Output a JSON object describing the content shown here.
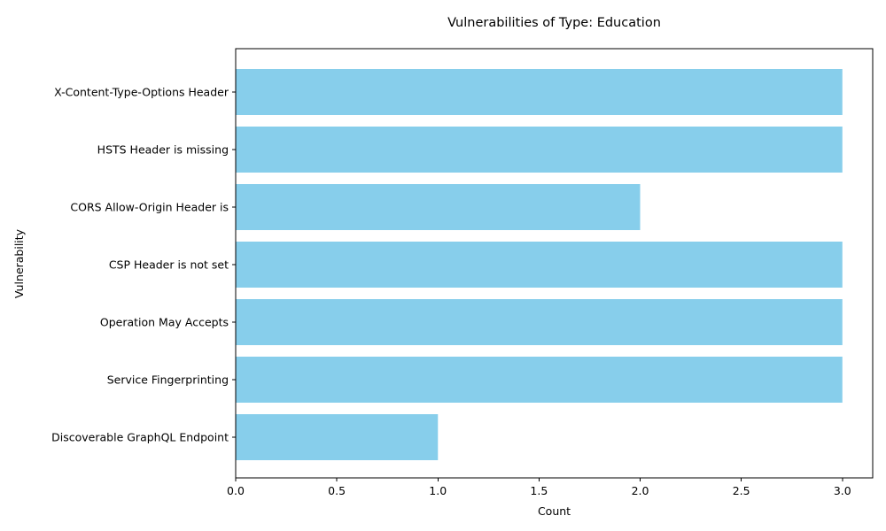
{
  "chart_data": {
    "type": "bar",
    "orientation": "horizontal",
    "title": "Vulnerabilities of Type: Education",
    "xlabel": "Count",
    "ylabel": "Vulnerability",
    "categories": [
      "X-Content-Type-Options Header",
      "HSTS Header is missing",
      "CORS Allow-Origin Header is",
      "CSP Header is not set",
      "Operation May Accepts",
      "Service Fingerprinting",
      "Discoverable GraphQL Endpoint"
    ],
    "values": [
      3,
      3,
      2,
      3,
      3,
      3,
      1
    ],
    "xlim": [
      0,
      3.15
    ],
    "xticks": [
      "0.0",
      "0.5",
      "1.0",
      "1.5",
      "2.0",
      "2.5",
      "3.0"
    ],
    "bar_color": "#87CEEB",
    "grid": false,
    "legend": "none"
  }
}
